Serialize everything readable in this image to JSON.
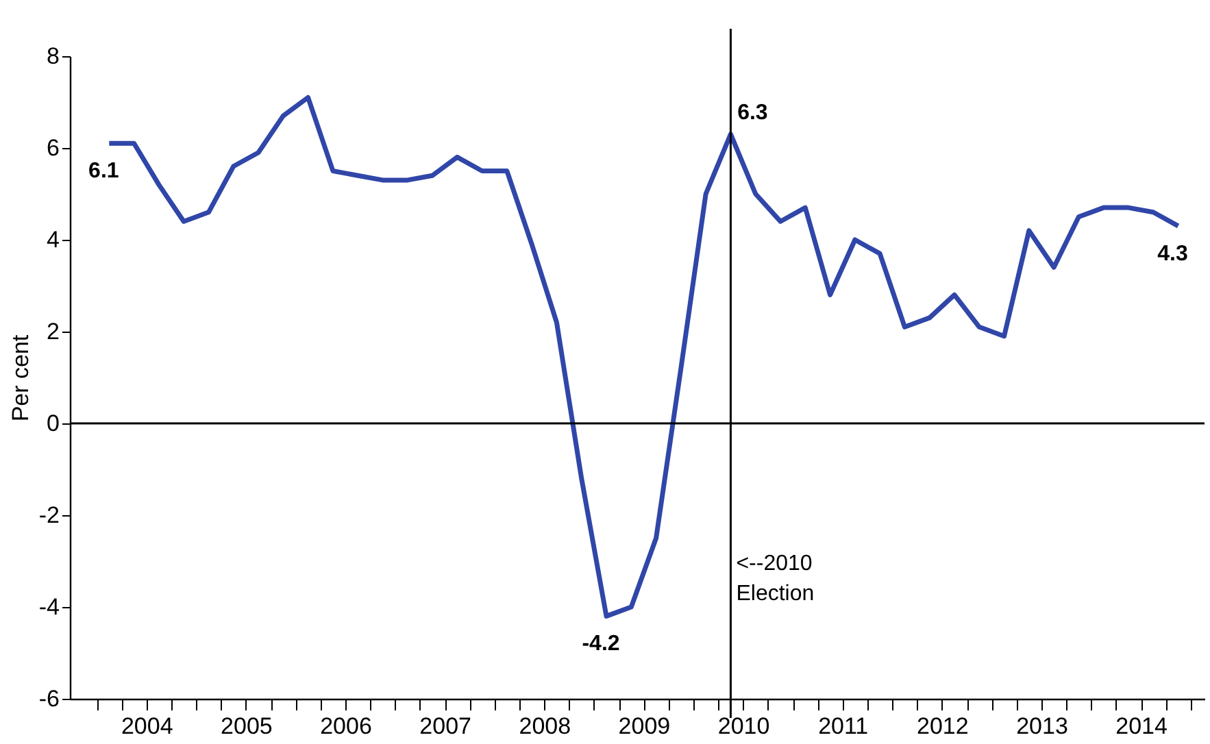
{
  "chart_data": {
    "type": "line",
    "ylabel": "Per cent",
    "x": [
      2004.125,
      2004.375,
      2004.625,
      2004.875,
      2005.125,
      2005.375,
      2005.625,
      2005.875,
      2006.125,
      2006.375,
      2006.625,
      2006.875,
      2007.125,
      2007.375,
      2007.625,
      2007.875,
      2008.125,
      2008.375,
      2008.625,
      2008.875,
      2009.125,
      2009.375,
      2009.625,
      2009.875,
      2010.125,
      2010.375,
      2010.625,
      2010.875,
      2011.125,
      2011.375,
      2011.625,
      2011.875,
      2012.125,
      2012.375,
      2012.625,
      2012.875,
      2013.125,
      2013.375,
      2013.625,
      2013.875,
      2014.125,
      2014.375,
      2014.625,
      2014.875
    ],
    "series": [
      {
        "color": "#3046a8",
        "values": [
          6.1,
          6.1,
          5.2,
          4.4,
          4.6,
          5.6,
          5.9,
          6.7,
          7.1,
          5.5,
          5.4,
          5.3,
          5.3,
          5.4,
          5.8,
          5.5,
          5.5,
          3.9,
          2.2,
          -1.2,
          -4.2,
          -4.0,
          -2.5,
          1.2,
          5.0,
          6.3,
          5.0,
          4.4,
          4.7,
          2.8,
          4.0,
          3.7,
          2.1,
          2.3,
          2.8,
          2.1,
          1.9,
          4.2,
          3.4,
          4.5,
          4.7,
          4.7,
          4.6,
          4.3
        ],
        "value_labels": [
          "6.1",
          null,
          null,
          null,
          null,
          null,
          null,
          null,
          null,
          null,
          null,
          null,
          null,
          null,
          null,
          null,
          null,
          null,
          null,
          null,
          "-4.2",
          null,
          null,
          null,
          null,
          "6.3",
          null,
          null,
          null,
          null,
          null,
          null,
          null,
          null,
          null,
          null,
          null,
          null,
          null,
          null,
          null,
          null,
          null,
          "4.3"
        ]
      }
    ],
    "xlim": [
      2003.73,
      2015.14
    ],
    "xticks": [
      {
        "value": 2004.0,
        "label": null
      },
      {
        "value": 2004.25,
        "label": null
      },
      {
        "value": 2004.5,
        "label": "2004"
      },
      {
        "value": 2004.75,
        "label": null
      },
      {
        "value": 2005.0,
        "label": null
      },
      {
        "value": 2005.25,
        "label": null
      },
      {
        "value": 2005.5,
        "label": "2005"
      },
      {
        "value": 2005.75,
        "label": null
      },
      {
        "value": 2006.0,
        "label": null
      },
      {
        "value": 2006.25,
        "label": null
      },
      {
        "value": 2006.5,
        "label": "2006"
      },
      {
        "value": 2006.75,
        "label": null
      },
      {
        "value": 2007.0,
        "label": null
      },
      {
        "value": 2007.25,
        "label": null
      },
      {
        "value": 2007.5,
        "label": "2007"
      },
      {
        "value": 2007.75,
        "label": null
      },
      {
        "value": 2008.0,
        "label": null
      },
      {
        "value": 2008.25,
        "label": null
      },
      {
        "value": 2008.5,
        "label": "2008"
      },
      {
        "value": 2008.75,
        "label": null
      },
      {
        "value": 2009.0,
        "label": null
      },
      {
        "value": 2009.25,
        "label": null
      },
      {
        "value": 2009.5,
        "label": "2009"
      },
      {
        "value": 2009.75,
        "label": null
      },
      {
        "value": 2010.0,
        "label": null
      },
      {
        "value": 2010.25,
        "label": null
      },
      {
        "value": 2010.5,
        "label": "2010"
      },
      {
        "value": 2010.75,
        "label": null
      },
      {
        "value": 2011.0,
        "label": null
      },
      {
        "value": 2011.25,
        "label": null
      },
      {
        "value": 2011.5,
        "label": "2011"
      },
      {
        "value": 2011.75,
        "label": null
      },
      {
        "value": 2012.0,
        "label": null
      },
      {
        "value": 2012.25,
        "label": null
      },
      {
        "value": 2012.5,
        "label": "2012"
      },
      {
        "value": 2012.75,
        "label": null
      },
      {
        "value": 2013.0,
        "label": null
      },
      {
        "value": 2013.25,
        "label": null
      },
      {
        "value": 2013.5,
        "label": "2013"
      },
      {
        "value": 2013.75,
        "label": null
      },
      {
        "value": 2014.0,
        "label": null
      },
      {
        "value": 2014.25,
        "label": null
      },
      {
        "value": 2014.5,
        "label": "2014"
      },
      {
        "value": 2014.75,
        "label": null
      },
      {
        "value": 2015.0,
        "label": null
      }
    ],
    "ylim": [
      -6,
      8
    ],
    "yticks": [
      -6,
      -4,
      -2,
      0,
      2,
      4,
      6,
      8
    ],
    "ref_lines": [
      {
        "axis": "y",
        "value": 0,
        "label": null,
        "color": "#000000"
      },
      {
        "axis": "x",
        "value": 2010.375,
        "label": "<--2010 Election",
        "color": "#000000"
      }
    ],
    "grid": false,
    "marker": "none",
    "line_style": "solid"
  }
}
